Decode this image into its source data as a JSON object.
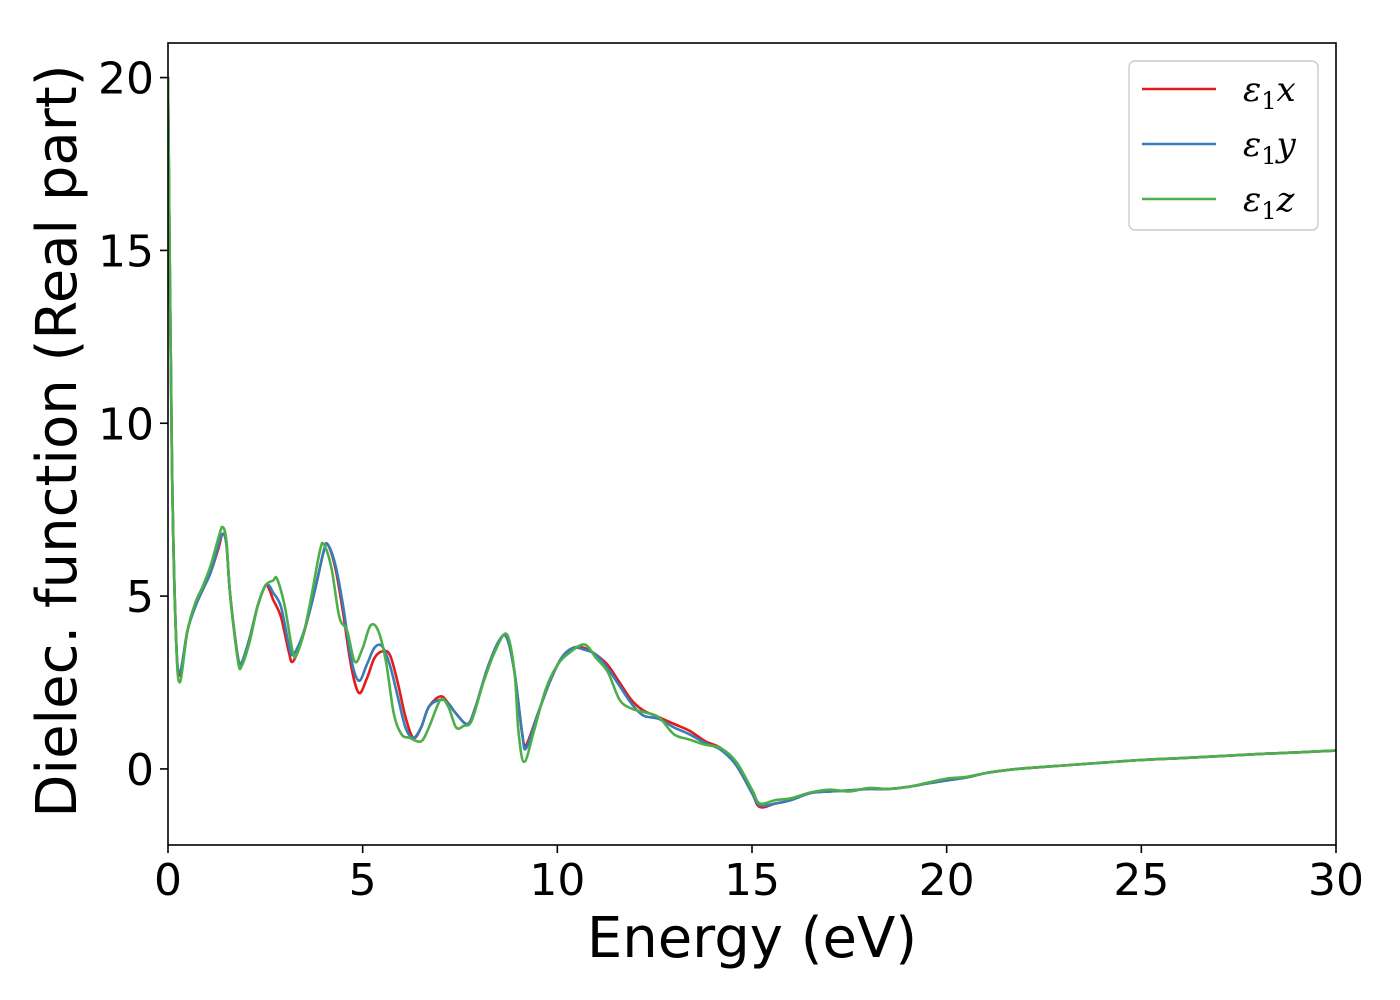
{
  "chart_data": {
    "type": "line",
    "title": "",
    "xlabel": "Energy (eV)",
    "ylabel": "Dielec. function (Real part)",
    "xlim": [
      0,
      30
    ],
    "ylim": [
      -2.2,
      21
    ],
    "xticks": [
      0,
      5,
      10,
      15,
      20,
      25,
      30
    ],
    "yticks": [
      0,
      5,
      10,
      15,
      20
    ],
    "grid": false,
    "legend_position": "top-right",
    "series": [
      {
        "name": "ε₁x",
        "legend_main": "ε",
        "legend_sub": "1",
        "legend_var": "x",
        "color": "#e41a1c",
        "points": [
          [
            0.0,
            20.0
          ],
          [
            0.1,
            9.0
          ],
          [
            0.2,
            4.0
          ],
          [
            0.3,
            2.7
          ],
          [
            0.5,
            4.0
          ],
          [
            0.7,
            4.7
          ],
          [
            0.9,
            5.2
          ],
          [
            1.1,
            5.7
          ],
          [
            1.3,
            6.4
          ],
          [
            1.4,
            6.8
          ],
          [
            1.5,
            6.5
          ],
          [
            1.6,
            5.0
          ],
          [
            1.8,
            3.2
          ],
          [
            1.9,
            3.1
          ],
          [
            2.1,
            3.8
          ],
          [
            2.3,
            4.7
          ],
          [
            2.5,
            5.3
          ],
          [
            2.6,
            5.2
          ],
          [
            2.7,
            4.9
          ],
          [
            2.9,
            4.4
          ],
          [
            3.1,
            3.4
          ],
          [
            3.2,
            3.1
          ],
          [
            3.4,
            3.6
          ],
          [
            3.6,
            4.4
          ],
          [
            3.8,
            5.3
          ],
          [
            4.0,
            6.3
          ],
          [
            4.1,
            6.5
          ],
          [
            4.3,
            5.8
          ],
          [
            4.5,
            4.5
          ],
          [
            4.7,
            3.0
          ],
          [
            4.9,
            2.2
          ],
          [
            5.1,
            2.6
          ],
          [
            5.3,
            3.2
          ],
          [
            5.5,
            3.4
          ],
          [
            5.7,
            3.3
          ],
          [
            5.9,
            2.5
          ],
          [
            6.1,
            1.5
          ],
          [
            6.3,
            0.9
          ],
          [
            6.5,
            1.2
          ],
          [
            6.7,
            1.8
          ],
          [
            7.0,
            2.1
          ],
          [
            7.2,
            1.9
          ],
          [
            7.4,
            1.6
          ],
          [
            7.7,
            1.3
          ],
          [
            7.9,
            1.8
          ],
          [
            8.2,
            2.9
          ],
          [
            8.5,
            3.7
          ],
          [
            8.7,
            3.8
          ],
          [
            8.9,
            2.8
          ],
          [
            9.1,
            1.0
          ],
          [
            9.2,
            0.7
          ],
          [
            9.5,
            1.6
          ],
          [
            9.8,
            2.5
          ],
          [
            10.1,
            3.2
          ],
          [
            10.4,
            3.5
          ],
          [
            10.7,
            3.5
          ],
          [
            11.0,
            3.3
          ],
          [
            11.3,
            3.0
          ],
          [
            11.6,
            2.5
          ],
          [
            11.9,
            2.0
          ],
          [
            12.2,
            1.7
          ],
          [
            12.6,
            1.5
          ],
          [
            13.0,
            1.3
          ],
          [
            13.4,
            1.1
          ],
          [
            13.8,
            0.8
          ],
          [
            14.2,
            0.6
          ],
          [
            14.6,
            0.1
          ],
          [
            15.0,
            -0.7
          ],
          [
            15.2,
            -1.1
          ],
          [
            15.6,
            -1.0
          ],
          [
            16.0,
            -0.9
          ],
          [
            16.5,
            -0.7
          ],
          [
            17.0,
            -0.65
          ],
          [
            17.5,
            -0.62
          ],
          [
            18.0,
            -0.58
          ],
          [
            18.5,
            -0.58
          ],
          [
            19.0,
            -0.52
          ],
          [
            19.5,
            -0.42
          ],
          [
            20.0,
            -0.33
          ],
          [
            20.5,
            -0.25
          ],
          [
            21.0,
            -0.12
          ],
          [
            21.5,
            -0.04
          ],
          [
            22,
            0.02
          ],
          [
            23,
            0.1
          ],
          [
            24,
            0.18
          ],
          [
            25,
            0.26
          ],
          [
            26,
            0.31
          ],
          [
            27,
            0.37
          ],
          [
            28,
            0.43
          ],
          [
            29,
            0.48
          ],
          [
            30,
            0.53
          ]
        ]
      },
      {
        "name": "ε₁y",
        "legend_main": "ε",
        "legend_sub": "1",
        "legend_var": "y",
        "color": "#377eb8",
        "points": [
          [
            0.0,
            20.0
          ],
          [
            0.1,
            9.0
          ],
          [
            0.2,
            4.0
          ],
          [
            0.3,
            2.8
          ],
          [
            0.5,
            4.0
          ],
          [
            0.7,
            4.7
          ],
          [
            0.9,
            5.2
          ],
          [
            1.1,
            5.7
          ],
          [
            1.3,
            6.5
          ],
          [
            1.4,
            6.8
          ],
          [
            1.5,
            6.5
          ],
          [
            1.6,
            5.0
          ],
          [
            1.8,
            3.2
          ],
          [
            1.9,
            3.1
          ],
          [
            2.1,
            3.8
          ],
          [
            2.3,
            4.7
          ],
          [
            2.5,
            5.3
          ],
          [
            2.6,
            5.3
          ],
          [
            2.7,
            5.1
          ],
          [
            2.9,
            4.7
          ],
          [
            3.1,
            3.6
          ],
          [
            3.2,
            3.3
          ],
          [
            3.4,
            3.7
          ],
          [
            3.6,
            4.4
          ],
          [
            3.8,
            5.3
          ],
          [
            4.0,
            6.3
          ],
          [
            4.1,
            6.5
          ],
          [
            4.3,
            5.9
          ],
          [
            4.5,
            4.7
          ],
          [
            4.7,
            3.2
          ],
          [
            4.9,
            2.55
          ],
          [
            5.1,
            3.0
          ],
          [
            5.3,
            3.5
          ],
          [
            5.5,
            3.55
          ],
          [
            5.7,
            3.0
          ],
          [
            5.9,
            2.1
          ],
          [
            6.1,
            1.2
          ],
          [
            6.3,
            0.9
          ],
          [
            6.5,
            1.2
          ],
          [
            6.7,
            1.8
          ],
          [
            7.0,
            2.0
          ],
          [
            7.2,
            1.9
          ],
          [
            7.4,
            1.6
          ],
          [
            7.7,
            1.3
          ],
          [
            7.9,
            1.8
          ],
          [
            8.2,
            2.9
          ],
          [
            8.5,
            3.7
          ],
          [
            8.7,
            3.8
          ],
          [
            8.9,
            2.8
          ],
          [
            9.1,
            1.0
          ],
          [
            9.2,
            0.6
          ],
          [
            9.5,
            1.6
          ],
          [
            9.8,
            2.5
          ],
          [
            10.1,
            3.2
          ],
          [
            10.4,
            3.5
          ],
          [
            10.7,
            3.45
          ],
          [
            11.0,
            3.3
          ],
          [
            11.3,
            2.9
          ],
          [
            11.6,
            2.4
          ],
          [
            11.9,
            1.9
          ],
          [
            12.2,
            1.55
          ],
          [
            12.6,
            1.45
          ],
          [
            13.0,
            1.2
          ],
          [
            13.4,
            1.0
          ],
          [
            13.8,
            0.75
          ],
          [
            14.2,
            0.55
          ],
          [
            14.6,
            0.1
          ],
          [
            15.0,
            -0.7
          ],
          [
            15.2,
            -1.05
          ],
          [
            15.6,
            -1.0
          ],
          [
            16.0,
            -0.9
          ],
          [
            16.5,
            -0.7
          ],
          [
            17.0,
            -0.65
          ],
          [
            17.5,
            -0.62
          ],
          [
            18.0,
            -0.58
          ],
          [
            18.5,
            -0.58
          ],
          [
            19.0,
            -0.52
          ],
          [
            19.5,
            -0.42
          ],
          [
            20.0,
            -0.33
          ],
          [
            20.5,
            -0.25
          ],
          [
            21.0,
            -0.12
          ],
          [
            21.5,
            -0.04
          ],
          [
            22,
            0.02
          ],
          [
            23,
            0.1
          ],
          [
            24,
            0.18
          ],
          [
            25,
            0.26
          ],
          [
            26,
            0.31
          ],
          [
            27,
            0.37
          ],
          [
            28,
            0.43
          ],
          [
            29,
            0.48
          ],
          [
            30,
            0.53
          ]
        ]
      },
      {
        "name": "ε₁z",
        "legend_main": "ε",
        "legend_sub": "1",
        "legend_var": "z",
        "color": "#4daf4a",
        "points": [
          [
            0.0,
            20.0
          ],
          [
            0.1,
            9.0
          ],
          [
            0.2,
            4.0
          ],
          [
            0.3,
            2.5
          ],
          [
            0.5,
            4.0
          ],
          [
            0.7,
            4.8
          ],
          [
            0.9,
            5.3
          ],
          [
            1.1,
            5.9
          ],
          [
            1.3,
            6.7
          ],
          [
            1.4,
            7.0
          ],
          [
            1.5,
            6.6
          ],
          [
            1.6,
            5.0
          ],
          [
            1.8,
            3.1
          ],
          [
            1.9,
            3.0
          ],
          [
            2.1,
            3.7
          ],
          [
            2.3,
            4.7
          ],
          [
            2.5,
            5.3
          ],
          [
            2.7,
            5.45
          ],
          [
            2.8,
            5.5
          ],
          [
            3.0,
            4.7
          ],
          [
            3.2,
            3.4
          ],
          [
            3.3,
            3.3
          ],
          [
            3.5,
            4.0
          ],
          [
            3.7,
            5.1
          ],
          [
            3.9,
            6.3
          ],
          [
            4.0,
            6.5
          ],
          [
            4.2,
            5.8
          ],
          [
            4.4,
            4.4
          ],
          [
            4.6,
            4.0
          ],
          [
            4.8,
            3.1
          ],
          [
            5.0,
            3.5
          ],
          [
            5.2,
            4.15
          ],
          [
            5.4,
            4.0
          ],
          [
            5.6,
            3.1
          ],
          [
            5.8,
            1.6
          ],
          [
            6.0,
            1.0
          ],
          [
            6.2,
            0.9
          ],
          [
            6.5,
            0.8
          ],
          [
            6.7,
            1.2
          ],
          [
            7.0,
            2.0
          ],
          [
            7.2,
            1.8
          ],
          [
            7.4,
            1.2
          ],
          [
            7.6,
            1.25
          ],
          [
            7.8,
            1.4
          ],
          [
            8.1,
            2.5
          ],
          [
            8.4,
            3.4
          ],
          [
            8.7,
            3.9
          ],
          [
            8.9,
            2.8
          ],
          [
            9.0,
            1.1
          ],
          [
            9.15,
            0.2
          ],
          [
            9.4,
            1.1
          ],
          [
            9.7,
            2.3
          ],
          [
            10.0,
            3.0
          ],
          [
            10.3,
            3.35
          ],
          [
            10.7,
            3.6
          ],
          [
            11.0,
            3.2
          ],
          [
            11.3,
            2.8
          ],
          [
            11.6,
            2.0
          ],
          [
            11.9,
            1.75
          ],
          [
            12.2,
            1.65
          ],
          [
            12.6,
            1.5
          ],
          [
            13.0,
            1.0
          ],
          [
            13.4,
            0.85
          ],
          [
            13.8,
            0.7
          ],
          [
            14.2,
            0.6
          ],
          [
            14.6,
            0.2
          ],
          [
            15.0,
            -0.6
          ],
          [
            15.2,
            -1.0
          ],
          [
            15.6,
            -0.9
          ],
          [
            16.0,
            -0.85
          ],
          [
            16.5,
            -0.68
          ],
          [
            17.0,
            -0.6
          ],
          [
            17.5,
            -0.65
          ],
          [
            18.0,
            -0.55
          ],
          [
            18.5,
            -0.58
          ],
          [
            19.0,
            -0.52
          ],
          [
            19.5,
            -0.4
          ],
          [
            20.0,
            -0.28
          ],
          [
            20.5,
            -0.23
          ],
          [
            21.0,
            -0.12
          ],
          [
            21.5,
            -0.04
          ],
          [
            22,
            0.02
          ],
          [
            23,
            0.1
          ],
          [
            24,
            0.18
          ],
          [
            25,
            0.26
          ],
          [
            26,
            0.31
          ],
          [
            27,
            0.37
          ],
          [
            28,
            0.43
          ],
          [
            29,
            0.48
          ],
          [
            30,
            0.53
          ]
        ]
      }
    ]
  }
}
